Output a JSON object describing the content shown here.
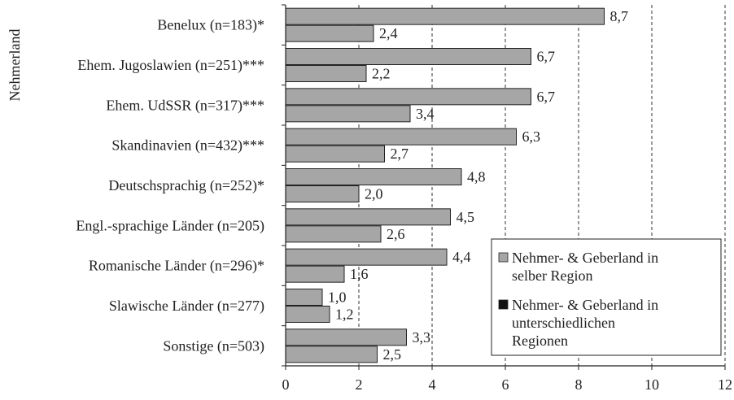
{
  "chart_data": {
    "type": "bar",
    "orientation": "horizontal",
    "ylabel": "Nehmerland",
    "categories": [
      "Benelux (n=183)*",
      "Ehem. Jugoslawien (n=251)***",
      "Ehem. UdSSR (n=317)***",
      "Skandinavien (n=432)***",
      "Deutschsprachig (n=252)*",
      "Engl.-sprachige Länder (n=205)",
      "Romanische Länder (n=296)*",
      "Slawische Länder (n=277)",
      "Sonstige (n=503)"
    ],
    "series": [
      {
        "name": "Nehmer- & Geberland in selber Region",
        "color": "#a6a6a6",
        "values": [
          8.7,
          6.7,
          6.7,
          6.3,
          4.8,
          4.5,
          4.4,
          1.0,
          3.3
        ],
        "labels": [
          "8,7",
          "6,7",
          "6,7",
          "6,3",
          "4,8",
          "4,5",
          "4,4",
          "1,0",
          "3,3"
        ]
      },
      {
        "name": "Nehmer- & Geberland in unterschiedlichen Regionen",
        "color": "#a6a6a6",
        "legend_color": "#111111",
        "values": [
          2.4,
          2.2,
          3.4,
          2.7,
          2.0,
          2.6,
          1.6,
          1.2,
          2.5
        ],
        "labels": [
          "2,4",
          "2,2",
          "3,4",
          "2,7",
          "2,0",
          "2,6",
          "1,6",
          "1,2",
          "2,5"
        ]
      }
    ],
    "xlim": [
      0,
      12
    ],
    "xticks": [
      0,
      2,
      4,
      6,
      8,
      10,
      12
    ],
    "xtick_labels": [
      "0",
      "2",
      "4",
      "6",
      "8",
      "10",
      "12"
    ],
    "grid": "vertical dashed",
    "legend": {
      "placement": "bottom-right",
      "entries": [
        [
          "Nehmer- & Geberland in",
          "selber Region"
        ],
        [
          "Nehmer- & Geberland in",
          "unterschiedlichen",
          "Regionen"
        ]
      ]
    }
  }
}
